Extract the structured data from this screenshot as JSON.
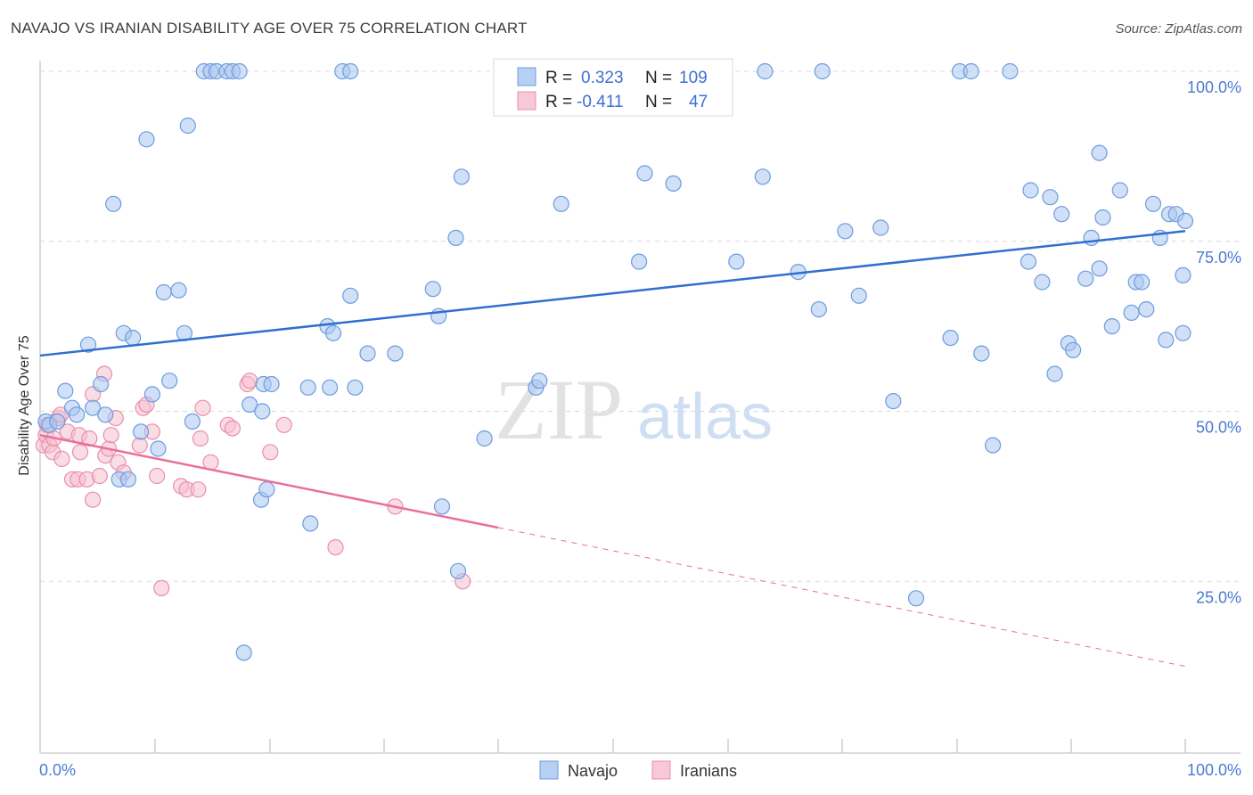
{
  "title": "NAVAJO VS IRANIAN DISABILITY AGE OVER 75 CORRELATION CHART",
  "source": "Source: ZipAtlas.com",
  "watermark": {
    "zip": "ZIP",
    "atlas": "atlas"
  },
  "legend_box": {
    "rows": [
      {
        "r_label": "R =",
        "r_value": "0.323",
        "n_label": "N =",
        "n_value": "109"
      },
      {
        "r_label": "R =",
        "r_value": "-0.411",
        "n_label": "N =",
        "n_value": "47"
      }
    ]
  },
  "colors": {
    "navajo_fill": "#a9c6ef",
    "navajo_stroke": "#6d9be0",
    "navajo_line": "#2f6fd0",
    "iranians_fill": "#f6bfd0",
    "iranians_stroke": "#e98fac",
    "iranians_line": "#e8709a",
    "grid": "#d9d9d9",
    "tick_text": "#4a7bd0"
  },
  "chart_data": {
    "type": "scatter",
    "title": "NAVAJO VS IRANIAN DISABILITY AGE OVER 75 CORRELATION CHART",
    "xlabel": "",
    "ylabel": "Disability Age Over 75",
    "xlim": [
      0,
      100
    ],
    "ylim": [
      0,
      105
    ],
    "x_tick_labels": [
      "0.0%",
      "100.0%"
    ],
    "y_ticks": [
      25,
      50,
      75,
      100
    ],
    "y_tick_labels": [
      "25.0%",
      "50.0%",
      "75.0%",
      "100.0%"
    ],
    "grid": "horizontal dashed",
    "legend_position": "top-center",
    "series": [
      {
        "name": "Navajo",
        "r": 0.323,
        "n": 109,
        "trend": {
          "x": [
            0,
            100
          ],
          "y": [
            58.2,
            76.5
          ],
          "dashed_from": null
        },
        "points": [
          [
            0.5,
            48.5
          ],
          [
            0.8,
            48
          ],
          [
            1.5,
            48.5
          ],
          [
            2.2,
            53
          ],
          [
            2.8,
            50.5
          ],
          [
            3.2,
            49.5
          ],
          [
            4.2,
            59.8
          ],
          [
            4.6,
            50.5
          ],
          [
            5.3,
            54
          ],
          [
            5.7,
            49.5
          ],
          [
            6.4,
            80.5
          ],
          [
            6.9,
            40
          ],
          [
            7.3,
            61.5
          ],
          [
            7.7,
            40
          ],
          [
            8.1,
            60.8
          ],
          [
            8.8,
            47
          ],
          [
            9.3,
            90
          ],
          [
            9.8,
            52.5
          ],
          [
            10.3,
            44.5
          ],
          [
            10.8,
            67.5
          ],
          [
            11.3,
            54.5
          ],
          [
            12.1,
            67.8
          ],
          [
            12.6,
            61.5
          ],
          [
            12.9,
            92
          ],
          [
            13.3,
            48.5
          ],
          [
            14.3,
            100
          ],
          [
            14.9,
            100
          ],
          [
            15.4,
            100
          ],
          [
            16.3,
            100
          ],
          [
            16.8,
            100
          ],
          [
            17.4,
            100
          ],
          [
            17.8,
            14.5
          ],
          [
            18.3,
            51
          ],
          [
            19.5,
            54
          ],
          [
            19.3,
            37
          ],
          [
            19.8,
            38.5
          ],
          [
            19.4,
            50
          ],
          [
            20.2,
            54
          ],
          [
            23.4,
            53.5
          ],
          [
            23.6,
            33.5
          ],
          [
            25.1,
            62.5
          ],
          [
            25.6,
            61.5
          ],
          [
            25.3,
            53.5
          ],
          [
            27.1,
            67
          ],
          [
            27.5,
            53.5
          ],
          [
            26.4,
            100
          ],
          [
            27.1,
            100
          ],
          [
            28.6,
            58.5
          ],
          [
            31,
            58.5
          ],
          [
            34.8,
            64
          ],
          [
            34.3,
            68
          ],
          [
            35.1,
            36
          ],
          [
            36.3,
            75.5
          ],
          [
            36.8,
            84.5
          ],
          [
            36.5,
            26.5
          ],
          [
            38.8,
            46
          ],
          [
            41.3,
            100
          ],
          [
            43.3,
            53.5
          ],
          [
            43.6,
            54.5
          ],
          [
            45.5,
            80.5
          ],
          [
            47.8,
            100
          ],
          [
            52.8,
            85
          ],
          [
            52.3,
            72
          ],
          [
            55.3,
            83.5
          ],
          [
            58.3,
            100
          ],
          [
            60.8,
            72
          ],
          [
            63.1,
            84.5
          ],
          [
            63.3,
            100
          ],
          [
            66.2,
            70.5
          ],
          [
            68,
            65
          ],
          [
            68.3,
            100
          ],
          [
            70.3,
            76.5
          ],
          [
            71.5,
            67
          ],
          [
            73.4,
            77
          ],
          [
            74.5,
            51.5
          ],
          [
            76.5,
            22.5
          ],
          [
            79.5,
            60.8
          ],
          [
            80.3,
            100
          ],
          [
            81.3,
            100
          ],
          [
            82.2,
            58.5
          ],
          [
            83.2,
            45
          ],
          [
            84.7,
            100
          ],
          [
            86.5,
            82.5
          ],
          [
            86.3,
            72
          ],
          [
            87.5,
            69
          ],
          [
            88.2,
            81.5
          ],
          [
            88.6,
            55.5
          ],
          [
            89.2,
            79
          ],
          [
            89.8,
            60
          ],
          [
            90.2,
            59
          ],
          [
            91.3,
            69.5
          ],
          [
            91.8,
            75.5
          ],
          [
            92.5,
            88
          ],
          [
            92.5,
            71
          ],
          [
            92.8,
            78.5
          ],
          [
            93.6,
            62.5
          ],
          [
            94.3,
            82.5
          ],
          [
            95.7,
            69
          ],
          [
            95.3,
            64.5
          ],
          [
            96.2,
            69
          ],
          [
            96.6,
            65
          ],
          [
            97.2,
            80.5
          ],
          [
            97.8,
            75.5
          ],
          [
            98.3,
            60.5
          ],
          [
            98.6,
            79
          ],
          [
            99.2,
            79
          ],
          [
            99.8,
            70
          ],
          [
            99.8,
            61.5
          ],
          [
            100,
            78
          ]
        ]
      },
      {
        "name": "Iranians",
        "r": -0.411,
        "n": 47,
        "trend": {
          "x": [
            0,
            100
          ],
          "y": [
            46.5,
            12.5
          ],
          "dashed_from": 40
        },
        "points": [
          [
            0.3,
            45
          ],
          [
            0.5,
            46.5
          ],
          [
            0.8,
            45
          ],
          [
            1.1,
            44
          ],
          [
            1.2,
            46
          ],
          [
            1.6,
            49
          ],
          [
            1.8,
            49.5
          ],
          [
            1.9,
            43
          ],
          [
            2.4,
            47
          ],
          [
            2.8,
            40
          ],
          [
            3.3,
            40
          ],
          [
            3.5,
            44
          ],
          [
            3.4,
            46.5
          ],
          [
            4.1,
            40
          ],
          [
            4.6,
            37
          ],
          [
            4.3,
            46
          ],
          [
            4.6,
            52.5
          ],
          [
            5.2,
            40.5
          ],
          [
            5.7,
            43.5
          ],
          [
            5.6,
            55.5
          ],
          [
            6,
            44.5
          ],
          [
            6.2,
            46.5
          ],
          [
            6.6,
            49
          ],
          [
            6.8,
            42.5
          ],
          [
            7.3,
            41
          ],
          [
            8.7,
            45
          ],
          [
            9,
            50.5
          ],
          [
            9.3,
            51
          ],
          [
            9.8,
            47
          ],
          [
            10.2,
            40.5
          ],
          [
            10.6,
            24
          ],
          [
            12.3,
            39
          ],
          [
            12.8,
            38.5
          ],
          [
            13.8,
            38.5
          ],
          [
            14,
            46
          ],
          [
            14.2,
            50.5
          ],
          [
            14.9,
            42.5
          ],
          [
            16.4,
            48
          ],
          [
            16.8,
            47.5
          ],
          [
            18.1,
            54
          ],
          [
            18.3,
            54.5
          ],
          [
            20.1,
            44
          ],
          [
            21.3,
            48
          ],
          [
            25.8,
            30
          ],
          [
            31,
            36
          ],
          [
            36.9,
            25
          ],
          [
            0.6,
            48
          ]
        ]
      }
    ]
  },
  "bottom_legend": {
    "navajo": "Navajo",
    "iranians": "Iranians"
  }
}
